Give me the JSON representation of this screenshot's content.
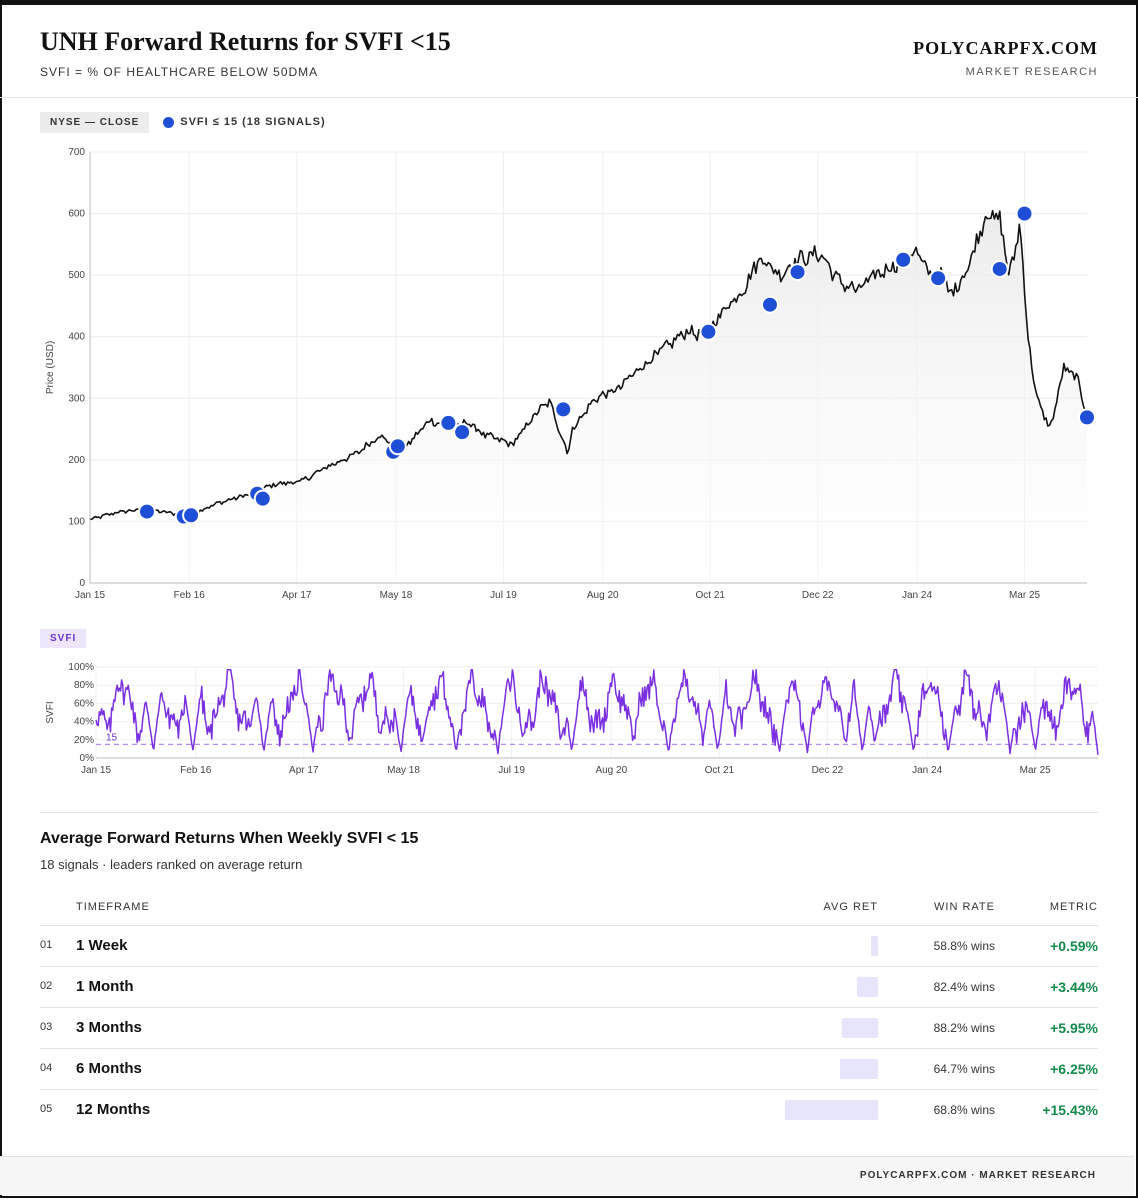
{
  "header": {
    "title": "UNH Forward Returns for SVFI <15",
    "subtitle": "SVFI = % OF HEALTHCARE BELOW 50DMA",
    "brand": "POLYCARPFX.COM",
    "brand_sub": "MARKET RESEARCH"
  },
  "legend": {
    "tag": "NYSE — CLOSE",
    "signal_label": "SVFI ≤ 15 (18 SIGNALS)"
  },
  "colors": {
    "price_line": "#111111",
    "signal": "#1f4fd6",
    "svfi_line": "#7a2fe0",
    "positive": "#128a4a"
  },
  "chart_data": [
    {
      "type": "line",
      "name": "price",
      "ylabel": "Price (USD)",
      "ylim": [
        0,
        700
      ],
      "yticks": [
        0,
        100,
        200,
        300,
        400,
        500,
        600,
        700
      ],
      "xlim": [
        2015.0,
        2025.85
      ],
      "xticks": [
        {
          "label": "Jan 15",
          "t": 2015.0
        },
        {
          "label": "Feb 16",
          "t": 2016.08
        },
        {
          "label": "Apr 17",
          "t": 2017.25
        },
        {
          "label": "May 18",
          "t": 2018.33
        },
        {
          "label": "Jul 19",
          "t": 2019.5
        },
        {
          "label": "Aug 20",
          "t": 2020.58
        },
        {
          "label": "Oct 21",
          "t": 2021.75
        },
        {
          "label": "Dec 22",
          "t": 2022.92
        },
        {
          "label": "Jan 24",
          "t": 2024.0
        },
        {
          "label": "Mar 25",
          "t": 2025.17
        }
      ],
      "anchors": [
        [
          2015.0,
          103
        ],
        [
          2015.3,
          115
        ],
        [
          2015.6,
          120
        ],
        [
          2015.9,
          113
        ],
        [
          2016.1,
          112
        ],
        [
          2016.4,
          130
        ],
        [
          2016.75,
          145
        ],
        [
          2017.0,
          160
        ],
        [
          2017.3,
          165
        ],
        [
          2017.6,
          190
        ],
        [
          2017.9,
          210
        ],
        [
          2018.15,
          240
        ],
        [
          2018.4,
          215
        ],
        [
          2018.7,
          265
        ],
        [
          2018.95,
          250
        ],
        [
          2019.1,
          262
        ],
        [
          2019.3,
          240
        ],
        [
          2019.6,
          225
        ],
        [
          2019.85,
          275
        ],
        [
          2020.0,
          295
        ],
        [
          2020.2,
          210
        ],
        [
          2020.25,
          250
        ],
        [
          2020.5,
          300
        ],
        [
          2020.75,
          315
        ],
        [
          2020.95,
          345
        ],
        [
          2021.2,
          375
        ],
        [
          2021.5,
          410
        ],
        [
          2021.7,
          400
        ],
        [
          2021.9,
          445
        ],
        [
          2022.1,
          475
        ],
        [
          2022.3,
          530
        ],
        [
          2022.5,
          500
        ],
        [
          2022.7,
          525
        ],
        [
          2022.95,
          535
        ],
        [
          2023.15,
          490
        ],
        [
          2023.35,
          475
        ],
        [
          2023.55,
          500
        ],
        [
          2023.85,
          525
        ],
        [
          2024.0,
          540
        ],
        [
          2024.1,
          505
        ],
        [
          2024.3,
          500
        ],
        [
          2024.35,
          465
        ],
        [
          2024.55,
          510
        ],
        [
          2024.75,
          600
        ],
        [
          2024.9,
          590
        ],
        [
          2025.0,
          505
        ],
        [
          2025.05,
          520
        ],
        [
          2025.12,
          590
        ],
        [
          2025.2,
          410
        ],
        [
          2025.3,
          300
        ],
        [
          2025.45,
          250
        ],
        [
          2025.6,
          350
        ],
        [
          2025.75,
          330
        ],
        [
          2025.85,
          270
        ]
      ],
      "signals": [
        {
          "t": 2015.62,
          "v": 116
        },
        {
          "t": 2016.02,
          "v": 108
        },
        {
          "t": 2016.1,
          "v": 110
        },
        {
          "t": 2016.82,
          "v": 145
        },
        {
          "t": 2016.88,
          "v": 137
        },
        {
          "t": 2018.3,
          "v": 213
        },
        {
          "t": 2018.35,
          "v": 222
        },
        {
          "t": 2018.9,
          "v": 260
        },
        {
          "t": 2019.05,
          "v": 245
        },
        {
          "t": 2020.15,
          "v": 282
        },
        {
          "t": 2021.73,
          "v": 408
        },
        {
          "t": 2022.4,
          "v": 452
        },
        {
          "t": 2022.7,
          "v": 505
        },
        {
          "t": 2023.85,
          "v": 525
        },
        {
          "t": 2024.23,
          "v": 495
        },
        {
          "t": 2024.9,
          "v": 510
        },
        {
          "t": 2025.17,
          "v": 600
        },
        {
          "t": 2025.85,
          "v": 269
        }
      ]
    },
    {
      "type": "line",
      "name": "svfi",
      "title": "SVFI",
      "ylabel": "SVFI",
      "ylim": [
        0,
        100
      ],
      "yticks": [
        {
          "label": "0%",
          "v": 0
        },
        {
          "label": "20%",
          "v": 20
        },
        {
          "label": "40%",
          "v": 40
        },
        {
          "label": "60%",
          "v": 60
        },
        {
          "label": "80%",
          "v": 80
        },
        {
          "label": "100%",
          "v": 100
        }
      ],
      "threshold": 15,
      "threshold_label": "15",
      "xlim": [
        2015.0,
        2025.85
      ],
      "xticks": [
        {
          "label": "Jan 15",
          "t": 2015.0
        },
        {
          "label": "Feb 16",
          "t": 2016.08
        },
        {
          "label": "Apr 17",
          "t": 2017.25
        },
        {
          "label": "May 18",
          "t": 2018.33
        },
        {
          "label": "Jul 19",
          "t": 2019.5
        },
        {
          "label": "Aug 20",
          "t": 2020.58
        },
        {
          "label": "Oct 21",
          "t": 2021.75
        },
        {
          "label": "Dec 22",
          "t": 2022.92
        },
        {
          "label": "Jan 24",
          "t": 2024.0
        },
        {
          "label": "Mar 25",
          "t": 2025.17
        }
      ],
      "troughs": [
        2015.62,
        2016.05,
        2016.82,
        2017.35,
        2018.3,
        2018.9,
        2019.35,
        2020.15,
        2021.2,
        2021.73,
        2022.4,
        2022.7,
        2023.3,
        2023.85,
        2024.23,
        2024.9,
        2025.17,
        2025.85
      ]
    }
  ],
  "returns_table": {
    "title": "Average Forward Returns When Weekly SVFI < 15",
    "subtitle": "18 signals · leaders ranked on average return",
    "headers": {
      "timeframe": "TIMEFRAME",
      "avg_ret": "AVG RET",
      "win_rate": "WIN RATE",
      "metric": "METRIC"
    },
    "rows": [
      {
        "idx": "01",
        "timeframe": "1 Week",
        "avg": 0.59,
        "win_rate": "58.8% wins",
        "metric": "+0.59%"
      },
      {
        "idx": "02",
        "timeframe": "1 Month",
        "avg": 3.44,
        "win_rate": "82.4% wins",
        "metric": "+3.44%"
      },
      {
        "idx": "03",
        "timeframe": "3 Months",
        "avg": 5.95,
        "win_rate": "88.2% wins",
        "metric": "+5.95%"
      },
      {
        "idx": "04",
        "timeframe": "6 Months",
        "avg": 6.25,
        "win_rate": "64.7% wins",
        "metric": "+6.25%"
      },
      {
        "idx": "05",
        "timeframe": "12 Months",
        "avg": 15.43,
        "win_rate": "68.8% wins",
        "metric": "+15.43%"
      }
    ]
  },
  "footer": {
    "text": "POLYCARPFX.COM · MARKET RESEARCH"
  }
}
